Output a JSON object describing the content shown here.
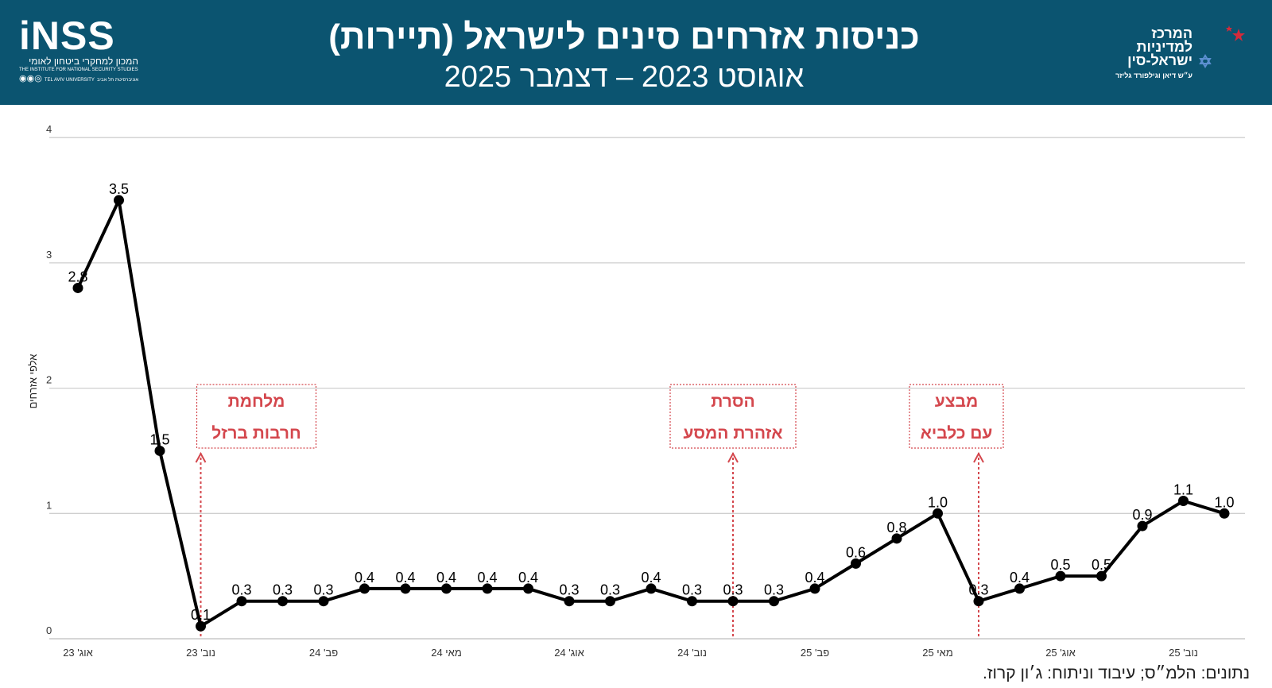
{
  "header": {
    "title": "כניסות אזרחים סינים לישראל (תיירות)",
    "subtitle": "אוגוסט 2023 – דצמבר 2025"
  },
  "logos": {
    "inss_word": "iNSS",
    "inss_hebrew": "המכון למחקרי ביטחון לאומי",
    "inss_english": "THE INSTITUTE FOR NATIONAL SECURITY STUDIES",
    "inss_university_he": "אוניברסיטת תל אביב",
    "inss_university_en": "TEL AVIV UNIVERSITY",
    "center_line1": "המרכז",
    "center_line2": "למדיניות",
    "center_line3": "ישראל-סין",
    "center_sub": "ע״ש דיאן וגילפורד גליזר"
  },
  "source_note": "נתונים: הלמ״ס; עיבוד וניתוח: ג׳ון קרוז.",
  "colors": {
    "header_bg": "#0b5470",
    "line": "#000000",
    "annotation": "#d4474d",
    "grid": "#cfcfcf"
  },
  "chart_data": {
    "type": "line",
    "ylabel": "אלפי אזרחים",
    "ylim": [
      0,
      4
    ],
    "yticks": [
      "0",
      "1",
      "2",
      "3",
      "4"
    ],
    "grid": "horizontal",
    "xtick_labels": [
      {
        "index": 0,
        "label": "אוג' 23"
      },
      {
        "index": 3,
        "label": "נוב' 23"
      },
      {
        "index": 6,
        "label": "פב' 24"
      },
      {
        "index": 9,
        "label": "מאי 24"
      },
      {
        "index": 12,
        "label": "אוג' 24"
      },
      {
        "index": 15,
        "label": "נוב' 24"
      },
      {
        "index": 18,
        "label": "פב' 25"
      },
      {
        "index": 21,
        "label": "מאי 25"
      },
      {
        "index": 24,
        "label": "אוג' 25"
      },
      {
        "index": 27,
        "label": "נוב' 25"
      }
    ],
    "values": [
      2.8,
      3.5,
      1.5,
      0.1,
      0.3,
      0.3,
      0.3,
      0.4,
      0.4,
      0.4,
      0.4,
      0.4,
      0.3,
      0.3,
      0.4,
      0.3,
      0.3,
      0.3,
      0.4,
      0.6,
      0.8,
      1.0,
      0.3,
      0.4,
      0.5,
      0.5,
      0.9,
      1.1,
      1.0
    ],
    "labels": [
      "2.8",
      "3.5",
      "1.5",
      "0.1",
      "0.3",
      "0.3",
      "0.3",
      "0.4",
      "0.4",
      "0.4",
      "0.4",
      "0.4",
      "0.3",
      "0.3",
      "0.4",
      "0.3",
      "0.3",
      "0.3",
      "0.4",
      "0.6",
      "0.8",
      "1.0",
      "0.3",
      "0.4",
      "0.5",
      "0.5",
      "0.9",
      "1.1",
      "1.0"
    ],
    "annotations": [
      {
        "lines": [
          "מלחמת",
          "חרבות ברזל"
        ],
        "at_index": 3.0
      },
      {
        "lines": [
          "הסרת",
          "אזהרת המסע"
        ],
        "at_index": 16.0
      },
      {
        "lines": [
          "מבצע",
          "עם כלביא"
        ],
        "at_index": 22.0
      }
    ]
  }
}
